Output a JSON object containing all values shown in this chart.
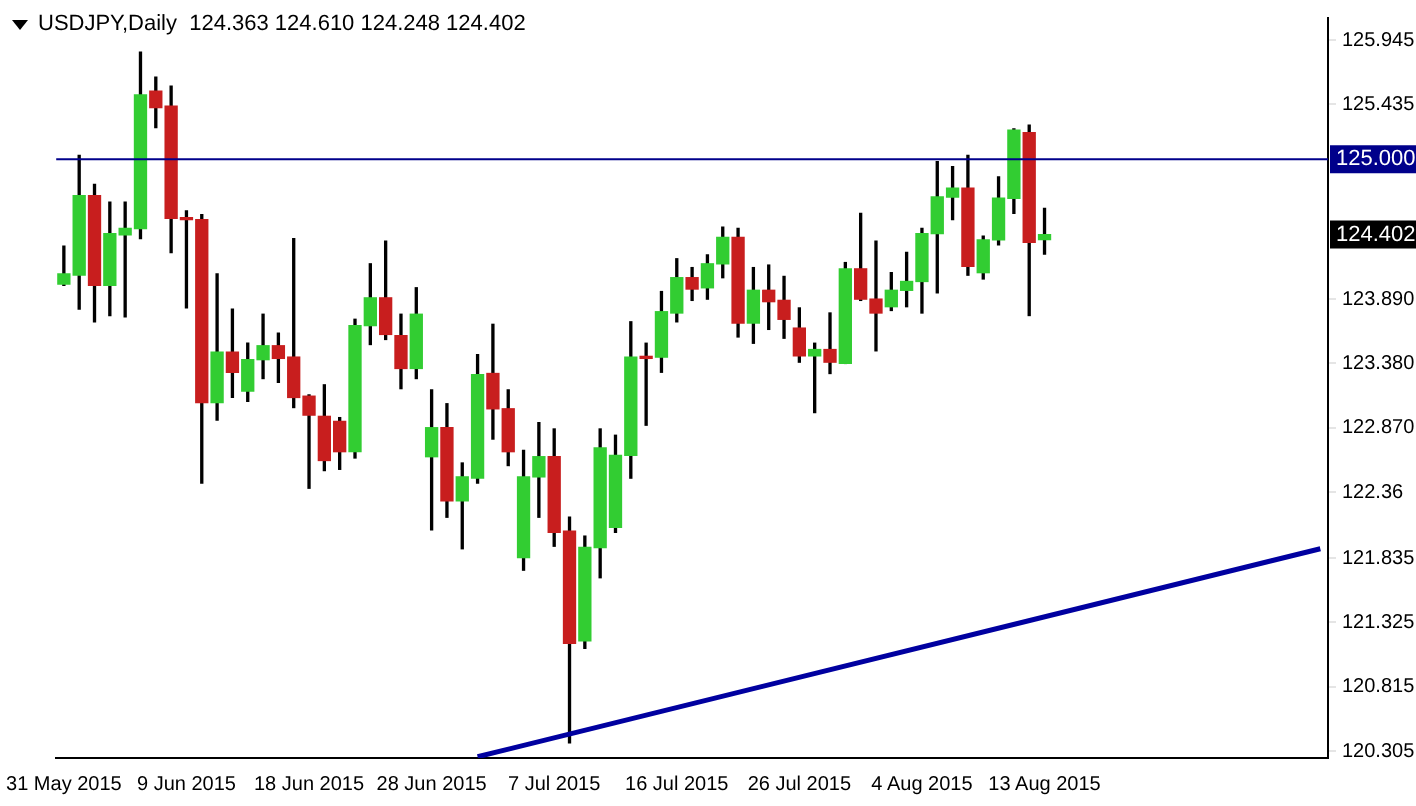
{
  "chart_data": {
    "type": "candlestick",
    "title": "USDJPY,Daily  124.363 124.610 124.248 124.402",
    "categories": [
      "31 May 2015",
      null,
      null,
      null,
      null,
      null,
      null,
      null,
      "9 Jun 2015",
      null,
      null,
      null,
      null,
      null,
      null,
      null,
      "18 Jun 2015",
      null,
      null,
      null,
      null,
      null,
      null,
      null,
      "28 Jun 2015",
      null,
      null,
      null,
      null,
      null,
      null,
      null,
      "7 Jul 2015",
      null,
      null,
      null,
      null,
      null,
      null,
      null,
      "16 Jul 2015",
      null,
      null,
      null,
      null,
      null,
      null,
      null,
      "26 Jul 2015",
      null,
      null,
      null,
      null,
      null,
      null,
      null,
      "4 Aug 2015",
      null,
      null,
      null,
      null,
      null,
      null,
      null,
      "13 Aug 2015",
      null,
      null,
      null,
      null,
      null,
      null,
      null,
      null,
      null,
      null,
      null,
      null,
      null,
      null,
      null,
      null,
      null,
      null
    ],
    "ohlc": [
      [
        124.01,
        124.31,
        124.0,
        124.09
      ],
      [
        124.08,
        125.03,
        123.81,
        124.71
      ],
      [
        124.71,
        124.8,
        123.71,
        124.0
      ],
      [
        124.0,
        124.66,
        123.76,
        124.41
      ],
      [
        124.4,
        124.66,
        123.75,
        124.45
      ],
      [
        124.45,
        125.85,
        124.37,
        125.51
      ],
      [
        125.54,
        125.65,
        125.25,
        125.41
      ],
      [
        125.42,
        125.58,
        124.26,
        124.53
      ],
      [
        124.53,
        124.59,
        123.82,
        124.52
      ],
      [
        124.52,
        124.56,
        122.43,
        123.07
      ],
      [
        123.07,
        124.09,
        122.93,
        123.47
      ],
      [
        123.47,
        123.81,
        123.11,
        123.31
      ],
      [
        123.16,
        123.54,
        123.08,
        123.41
      ],
      [
        123.41,
        123.77,
        123.26,
        123.52
      ],
      [
        123.52,
        123.62,
        123.23,
        123.42
      ],
      [
        123.43,
        124.37,
        123.03,
        123.11
      ],
      [
        123.12,
        123.13,
        122.39,
        122.97
      ],
      [
        122.96,
        123.21,
        122.53,
        122.61
      ],
      [
        122.92,
        122.95,
        122.54,
        122.68
      ],
      [
        122.68,
        123.73,
        122.63,
        123.68
      ],
      [
        123.68,
        124.17,
        123.53,
        123.9
      ],
      [
        123.9,
        124.35,
        123.57,
        123.61
      ],
      [
        123.6,
        123.77,
        123.18,
        123.34
      ],
      [
        123.34,
        123.98,
        123.26,
        123.77
      ],
      [
        122.64,
        123.17,
        122.06,
        122.87
      ],
      [
        122.87,
        123.06,
        122.16,
        122.29
      ],
      [
        122.29,
        122.59,
        121.91,
        122.48
      ],
      [
        122.47,
        123.45,
        122.43,
        123.29
      ],
      [
        123.3,
        123.69,
        122.78,
        123.02
      ],
      [
        123.02,
        123.17,
        122.57,
        122.68
      ],
      [
        121.84,
        122.69,
        121.74,
        122.48
      ],
      [
        122.48,
        122.91,
        122.16,
        122.64
      ],
      [
        122.64,
        122.86,
        121.93,
        122.04
      ],
      [
        122.05,
        122.16,
        120.37,
        121.16
      ],
      [
        121.18,
        122.01,
        121.12,
        121.92
      ],
      [
        121.92,
        122.86,
        121.68,
        122.71
      ],
      [
        122.08,
        122.81,
        122.04,
        122.65
      ],
      [
        122.65,
        123.71,
        122.47,
        123.43
      ],
      [
        123.43,
        123.54,
        122.89,
        123.42
      ],
      [
        123.43,
        123.95,
        123.31,
        123.79
      ],
      [
        123.78,
        124.21,
        123.71,
        124.06
      ],
      [
        124.06,
        124.14,
        123.88,
        123.97
      ],
      [
        123.98,
        124.24,
        123.89,
        124.17
      ],
      [
        124.17,
        124.46,
        124.06,
        124.38
      ],
      [
        124.38,
        124.45,
        123.59,
        123.7
      ],
      [
        123.7,
        124.14,
        123.54,
        123.96
      ],
      [
        123.96,
        124.16,
        123.65,
        123.87
      ],
      [
        123.88,
        124.07,
        123.58,
        123.73
      ],
      [
        123.66,
        123.82,
        123.39,
        123.44
      ],
      [
        123.44,
        123.54,
        122.99,
        123.49
      ],
      [
        123.49,
        123.78,
        123.3,
        123.39
      ],
      [
        123.38,
        124.18,
        123.38,
        124.13
      ],
      [
        124.13,
        124.57,
        123.88,
        123.89
      ],
      [
        123.89,
        124.35,
        123.48,
        123.78
      ],
      [
        123.83,
        124.1,
        123.8,
        123.96
      ],
      [
        123.96,
        124.26,
        123.83,
        124.03
      ],
      [
        124.03,
        124.45,
        123.78,
        124.41
      ],
      [
        124.41,
        124.98,
        123.94,
        124.7
      ],
      [
        124.7,
        124.94,
        124.52,
        124.77
      ],
      [
        124.77,
        125.03,
        124.08,
        124.15
      ],
      [
        124.1,
        124.39,
        124.05,
        124.36
      ],
      [
        124.36,
        124.86,
        124.32,
        124.69
      ],
      [
        124.69,
        125.24,
        124.57,
        125.23
      ],
      [
        125.21,
        125.27,
        123.76,
        124.34
      ],
      [
        124.363,
        124.61,
        124.248,
        124.402
      ],
      null,
      null,
      null,
      null,
      null,
      null,
      null,
      null,
      null,
      null,
      null,
      null,
      null,
      null,
      null,
      null,
      null,
      null
    ],
    "colors": [
      "#32cd32",
      "#32cd32",
      "#c81e1e",
      "#32cd32",
      "#32cd32",
      "#32cd32",
      "#c81e1e",
      "#c81e1e",
      "#c81e1e",
      "#c81e1e",
      "#32cd32",
      "#c81e1e",
      "#32cd32",
      "#32cd32",
      "#c81e1e",
      "#c81e1e",
      "#c81e1e",
      "#c81e1e",
      "#c81e1e",
      "#32cd32",
      "#32cd32",
      "#c81e1e",
      "#c81e1e",
      "#32cd32",
      "#32cd32",
      "#c81e1e",
      "#32cd32",
      "#32cd32",
      "#c81e1e",
      "#c81e1e",
      "#32cd32",
      "#32cd32",
      "#c81e1e",
      "#c81e1e",
      "#32cd32",
      "#32cd32",
      "#32cd32",
      "#32cd32",
      "#c81e1e",
      "#32cd32",
      "#32cd32",
      "#c81e1e",
      "#32cd32",
      "#32cd32",
      "#c81e1e",
      "#32cd32",
      "#c81e1e",
      "#c81e1e",
      "#c81e1e",
      "#32cd32",
      "#c81e1e",
      "#32cd32",
      "#c81e1e",
      "#c81e1e",
      "#32cd32",
      "#32cd32",
      "#32cd32",
      "#32cd32",
      "#32cd32",
      "#c81e1e",
      "#32cd32",
      "#32cd32",
      "#32cd32",
      "#c81e1e",
      "#32cd32",
      null,
      null,
      null,
      null,
      null,
      null,
      null,
      null,
      null,
      null,
      null,
      null,
      null,
      null,
      null,
      null,
      null,
      null
    ],
    "series": [
      {
        "type": "line",
        "color": "#0000a0",
        "values": [
          null,
          null,
          null,
          null,
          null,
          null,
          null,
          null,
          null,
          null,
          null,
          null,
          null,
          null,
          null,
          null,
          null,
          null,
          null,
          null,
          null,
          null,
          null,
          null,
          null,
          null,
          null,
          120.26,
          null,
          null,
          null,
          null,
          null,
          null,
          null,
          null,
          null,
          null,
          null,
          null,
          null,
          null,
          null,
          null,
          null,
          null,
          null,
          null,
          null,
          null,
          null,
          null,
          null,
          null,
          null,
          null,
          null,
          null,
          null,
          null,
          null,
          null,
          null,
          null,
          null,
          null,
          null,
          null,
          null,
          null,
          null,
          null,
          null,
          null,
          null,
          null,
          null,
          null,
          null,
          null,
          null,
          null,
          121.91
        ]
      }
    ],
    "ylim": [
      120.25,
      126.12
    ],
    "yticks": [
      120.305,
      120.815,
      121.325,
      121.835,
      122.36,
      {
        "value": 122.87,
        "label": "122.870"
      },
      {
        "value": 123.38,
        "label": "123.380"
      },
      {
        "value": 123.89,
        "label": "123.890"
      },
      125.435,
      125.945
    ],
    "ref_lines": [
      {
        "axis": "y",
        "value": 125.0,
        "label": "125.000",
        "color": "#00008b"
      }
    ],
    "annotations": [
      "124.402"
    ],
    "grid": false,
    "legend": false
  }
}
